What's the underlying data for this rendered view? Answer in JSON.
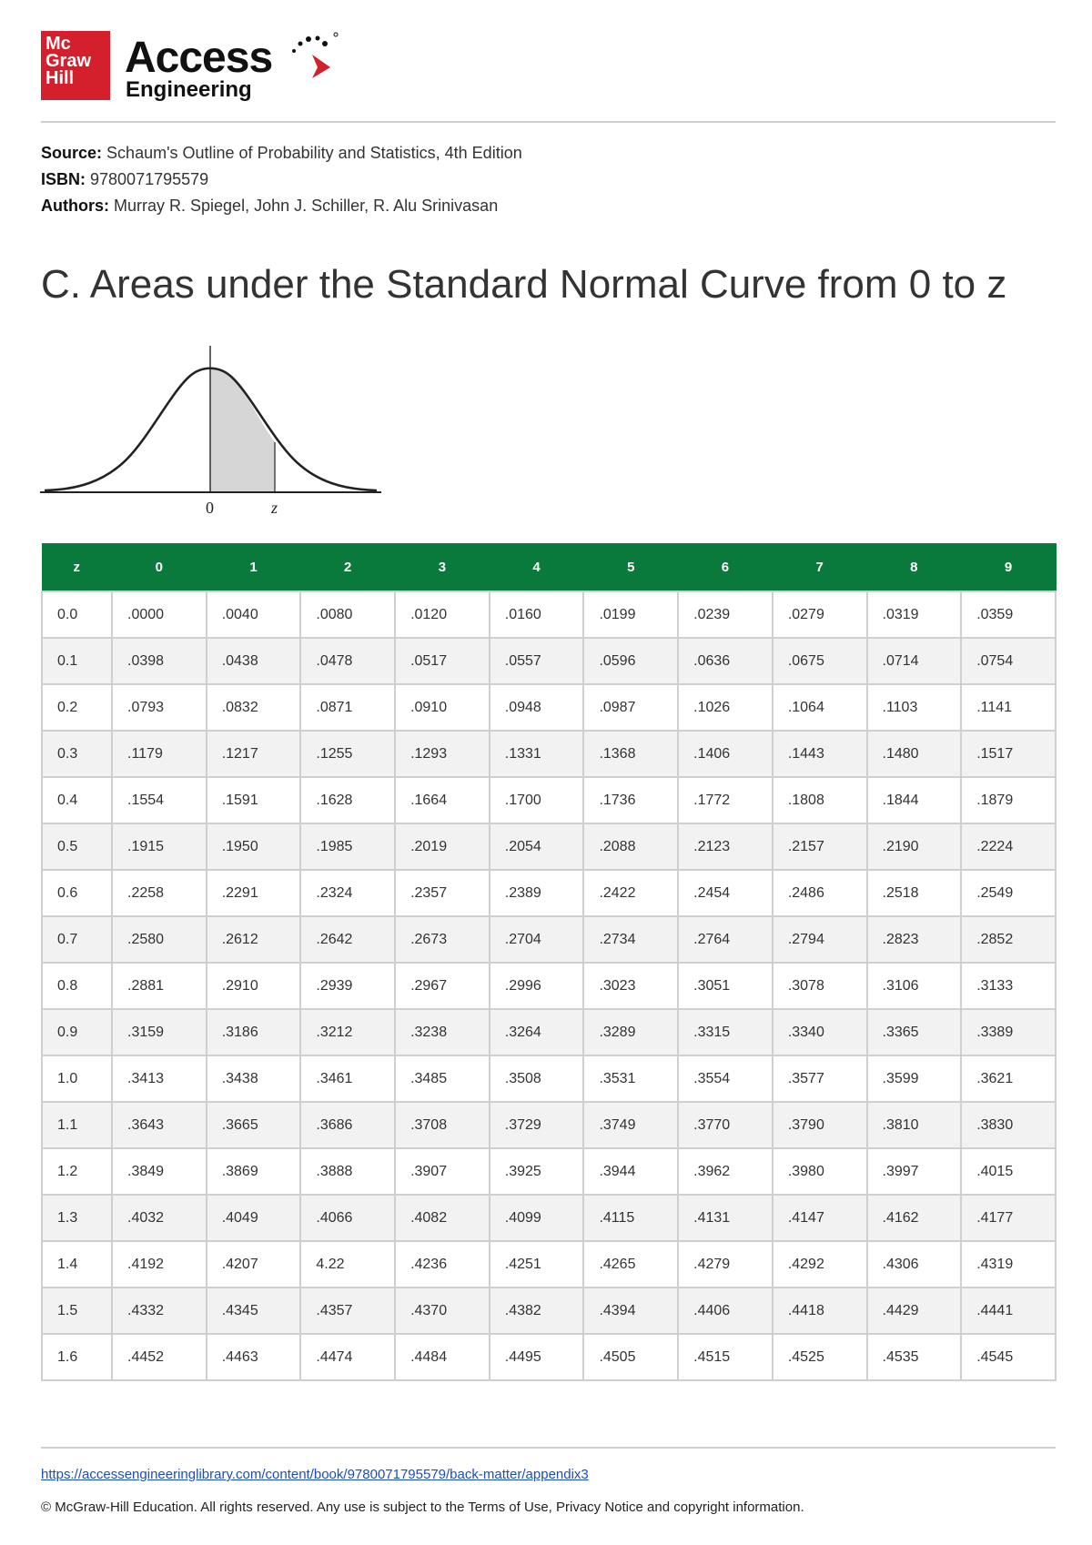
{
  "brand": {
    "box_lines": [
      "Mc",
      "Graw",
      "Hill"
    ],
    "access": "Access",
    "engineering": "Engineering",
    "brand_color": "#d4202c"
  },
  "meta": {
    "source_label": "Source:",
    "source_value": "Schaum's Outline of Probability and Statistics, 4th Edition",
    "isbn_label": "ISBN:",
    "isbn_value": "9780071795579",
    "authors_label": "Authors:",
    "authors_value": "Murray R. Spiegel, John J. Schiller, R. Alu Srinivasan"
  },
  "title": "C. Areas under the Standard Normal Curve from 0 to z",
  "figure": {
    "label_zero": "0",
    "label_z": "z"
  },
  "table": {
    "header_color": "#0a7a3c",
    "headers": [
      "z",
      "0",
      "1",
      "2",
      "3",
      "4",
      "5",
      "6",
      "7",
      "8",
      "9"
    ],
    "rows": [
      [
        "0.0",
        ".0000",
        ".0040",
        ".0080",
        ".0120",
        ".0160",
        ".0199",
        ".0239",
        ".0279",
        ".0319",
        ".0359"
      ],
      [
        "0.1",
        ".0398",
        ".0438",
        ".0478",
        ".0517",
        ".0557",
        ".0596",
        ".0636",
        ".0675",
        ".0714",
        ".0754"
      ],
      [
        "0.2",
        ".0793",
        ".0832",
        ".0871",
        ".0910",
        ".0948",
        ".0987",
        ".1026",
        ".1064",
        ".1103",
        ".1141"
      ],
      [
        "0.3",
        ".1179",
        ".1217",
        ".1255",
        ".1293",
        ".1331",
        ".1368",
        ".1406",
        ".1443",
        ".1480",
        ".1517"
      ],
      [
        "0.4",
        ".1554",
        ".1591",
        ".1628",
        ".1664",
        ".1700",
        ".1736",
        ".1772",
        ".1808",
        ".1844",
        ".1879"
      ],
      [
        "0.5",
        ".1915",
        ".1950",
        ".1985",
        ".2019",
        ".2054",
        ".2088",
        ".2123",
        ".2157",
        ".2190",
        ".2224"
      ],
      [
        "0.6",
        ".2258",
        ".2291",
        ".2324",
        ".2357",
        ".2389",
        ".2422",
        ".2454",
        ".2486",
        ".2518",
        ".2549"
      ],
      [
        "0.7",
        ".2580",
        ".2612",
        ".2642",
        ".2673",
        ".2704",
        ".2734",
        ".2764",
        ".2794",
        ".2823",
        ".2852"
      ],
      [
        "0.8",
        ".2881",
        ".2910",
        ".2939",
        ".2967",
        ".2996",
        ".3023",
        ".3051",
        ".3078",
        ".3106",
        ".3133"
      ],
      [
        "0.9",
        ".3159",
        ".3186",
        ".3212",
        ".3238",
        ".3264",
        ".3289",
        ".3315",
        ".3340",
        ".3365",
        ".3389"
      ],
      [
        "1.0",
        ".3413",
        ".3438",
        ".3461",
        ".3485",
        ".3508",
        ".3531",
        ".3554",
        ".3577",
        ".3599",
        ".3621"
      ],
      [
        "1.1",
        ".3643",
        ".3665",
        ".3686",
        ".3708",
        ".3729",
        ".3749",
        ".3770",
        ".3790",
        ".3810",
        ".3830"
      ],
      [
        "1.2",
        ".3849",
        ".3869",
        ".3888",
        ".3907",
        ".3925",
        ".3944",
        ".3962",
        ".3980",
        ".3997",
        ".4015"
      ],
      [
        "1.3",
        ".4032",
        ".4049",
        ".4066",
        ".4082",
        ".4099",
        ".4115",
        ".4131",
        ".4147",
        ".4162",
        ".4177"
      ],
      [
        "1.4",
        ".4192",
        ".4207",
        "4.22",
        ".4236",
        ".4251",
        ".4265",
        ".4279",
        ".4292",
        ".4306",
        ".4319"
      ],
      [
        "1.5",
        ".4332",
        ".4345",
        ".4357",
        ".4370",
        ".4382",
        ".4394",
        ".4406",
        ".4418",
        ".4429",
        ".4441"
      ],
      [
        "1.6",
        ".4452",
        ".4463",
        ".4474",
        ".4484",
        ".4495",
        ".4505",
        ".4515",
        ".4525",
        ".4535",
        ".4545"
      ]
    ]
  },
  "footer": {
    "link": "https://accessengineeringlibrary.com/content/book/9780071795579/back-matter/appendix3",
    "copyright": "© McGraw-Hill Education. All rights reserved. Any use is subject to the Terms of Use, Privacy Notice and copyright information."
  }
}
